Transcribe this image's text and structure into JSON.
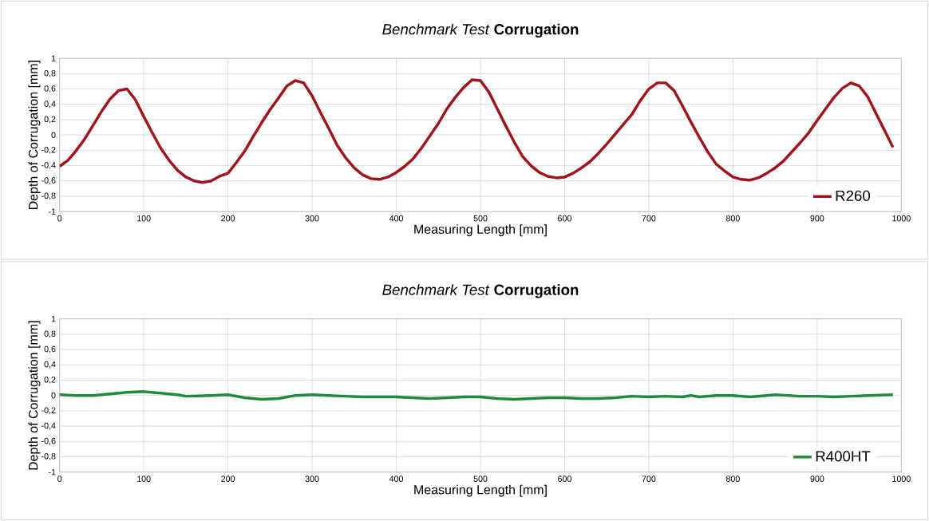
{
  "chart_data": [
    {
      "type": "line",
      "title": "*Benchmark Test* **Corrugation**",
      "xlabel": "Measuring Length [mm]",
      "ylabel": "Depth of Corrugation [mm]",
      "xlim": [
        0,
        1000
      ],
      "xticks": [
        0,
        100,
        200,
        300,
        400,
        500,
        600,
        700,
        800,
        900,
        1000
      ],
      "ylim": [
        -1,
        1
      ],
      "yticks": [
        {
          "value": -1,
          "label": "-1"
        },
        {
          "value": -0.8,
          "label": "-0,8"
        },
        {
          "value": -0.6,
          "label": "-0,6"
        },
        {
          "value": -0.4,
          "label": "-0,4"
        },
        {
          "value": -0.2,
          "label": "-0,2"
        },
        {
          "value": 0,
          "label": "0"
        },
        {
          "value": 0.2,
          "label": "0,2"
        },
        {
          "value": 0.4,
          "label": "0,4"
        },
        {
          "value": 0.6,
          "label": "0,6"
        },
        {
          "value": 0.8,
          "label": "0,8"
        },
        {
          "value": 1,
          "label": "1"
        }
      ],
      "grid": true,
      "legend": "bottom right",
      "marker": "none",
      "line_style": "solid",
      "x": [
        0,
        10,
        20,
        30,
        40,
        50,
        60,
        70,
        80,
        90,
        100,
        110,
        120,
        130,
        140,
        150,
        160,
        170,
        180,
        190,
        200,
        210,
        220,
        230,
        240,
        250,
        260,
        270,
        280,
        290,
        300,
        310,
        320,
        330,
        340,
        350,
        360,
        370,
        380,
        390,
        400,
        410,
        420,
        430,
        440,
        450,
        460,
        470,
        480,
        490,
        500,
        510,
        520,
        530,
        540,
        550,
        560,
        570,
        580,
        590,
        600,
        610,
        620,
        630,
        640,
        650,
        660,
        670,
        680,
        690,
        700,
        710,
        720,
        730,
        740,
        750,
        760,
        770,
        780,
        790,
        800,
        810,
        820,
        830,
        840,
        850,
        860,
        870,
        880,
        890,
        900,
        910,
        920,
        930,
        940,
        950,
        960,
        970,
        980,
        990
      ],
      "series": [
        {
          "name": "R260",
          "color": "#a0141e",
          "values": [
            -0.41,
            -0.33,
            -0.2,
            -0.05,
            0.13,
            0.31,
            0.47,
            0.58,
            0.6,
            0.46,
            0.24,
            0.03,
            -0.17,
            -0.33,
            -0.46,
            -0.55,
            -0.6,
            -0.62,
            -0.6,
            -0.54,
            -0.5,
            -0.36,
            -0.21,
            -0.02,
            0.16,
            0.33,
            0.48,
            0.64,
            0.71,
            0.68,
            0.51,
            0.29,
            0.08,
            -0.14,
            -0.3,
            -0.43,
            -0.52,
            -0.57,
            -0.58,
            -0.55,
            -0.49,
            -0.41,
            -0.31,
            -0.17,
            -0.01,
            0.15,
            0.34,
            0.49,
            0.62,
            0.72,
            0.71,
            0.56,
            0.34,
            0.12,
            -0.09,
            -0.28,
            -0.4,
            -0.49,
            -0.54,
            -0.56,
            -0.55,
            -0.5,
            -0.43,
            -0.35,
            -0.24,
            -0.12,
            0.01,
            0.14,
            0.27,
            0.45,
            0.6,
            0.68,
            0.68,
            0.58,
            0.38,
            0.17,
            -0.03,
            -0.22,
            -0.38,
            -0.47,
            -0.55,
            -0.58,
            -0.59,
            -0.56,
            -0.5,
            -0.43,
            -0.34,
            -0.22,
            -0.1,
            0.03,
            0.19,
            0.34,
            0.49,
            0.61,
            0.68,
            0.64,
            0.5,
            0.28,
            0.06,
            -0.16
          ]
        }
      ]
    },
    {
      "type": "line",
      "title": "*Benchmark Test* **Corrugation**",
      "xlabel": "Measuring Length [mm]",
      "ylabel": "Depth of Corrugation [mm]",
      "xlim": [
        0,
        1000
      ],
      "xticks": [
        0,
        100,
        200,
        300,
        400,
        500,
        600,
        700,
        800,
        900,
        1000
      ],
      "ylim": [
        -1,
        1
      ],
      "yticks": [
        {
          "value": -1,
          "label": "-1"
        },
        {
          "value": -0.8,
          "label": "-0,8"
        },
        {
          "value": -0.6,
          "label": "-0,6"
        },
        {
          "value": -0.4,
          "label": "-0,4"
        },
        {
          "value": -0.2,
          "label": "-0,2"
        },
        {
          "value": 0,
          "label": "0"
        },
        {
          "value": 0.2,
          "label": "0,2"
        },
        {
          "value": 0.4,
          "label": "0,4"
        },
        {
          "value": 0.6,
          "label": "0,6"
        },
        {
          "value": 0.8,
          "label": "0,8"
        },
        {
          "value": 1,
          "label": "1"
        }
      ],
      "grid": true,
      "legend": "bottom right",
      "marker": "none",
      "line_style": "solid",
      "x": [
        0,
        20,
        40,
        60,
        80,
        100,
        120,
        140,
        150,
        180,
        200,
        220,
        240,
        260,
        280,
        300,
        320,
        340,
        360,
        380,
        400,
        420,
        440,
        460,
        480,
        500,
        520,
        540,
        560,
        580,
        600,
        620,
        640,
        660,
        680,
        700,
        720,
        740,
        750,
        760,
        780,
        800,
        820,
        840,
        850,
        880,
        900,
        920,
        940,
        960,
        990
      ],
      "series": [
        {
          "name": "R400HT",
          "color": "#1e8c3c",
          "values": [
            0.01,
            0,
            0,
            0.02,
            0.04,
            0.05,
            0.03,
            0.01,
            -0.01,
            0,
            0.01,
            -0.03,
            -0.05,
            -0.04,
            0,
            0.01,
            0,
            -0.01,
            -0.02,
            -0.02,
            -0.02,
            -0.03,
            -0.04,
            -0.03,
            -0.02,
            -0.02,
            -0.04,
            -0.05,
            -0.04,
            -0.03,
            -0.03,
            -0.04,
            -0.04,
            -0.03,
            -0.01,
            -0.02,
            -0.01,
            -0.02,
            0,
            -0.02,
            0,
            0,
            -0.02,
            0,
            0.01,
            -0.01,
            -0.01,
            -0.02,
            -0.01,
            0,
            0.01
          ]
        }
      ]
    }
  ]
}
